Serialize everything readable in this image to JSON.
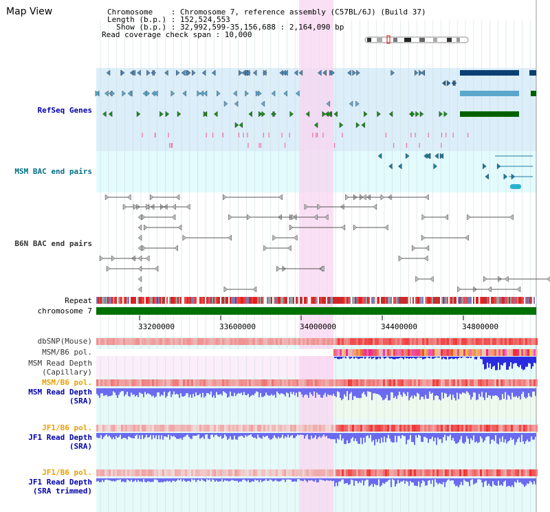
{
  "view_title": "Map View",
  "header": {
    "chromosome_line": "Chromosome    : Chromosome 7, reference assembly (C57BL/6J) (Build 37)",
    "length_line": "Length (b.p.) : 152,524,553",
    "show_line": "  Show (b.p.) : 32,992,599-35,156,688 : 2,164,090 bp",
    "coverage_line": "Read coverage check span : 10,000"
  },
  "tracks": {
    "refseq": "RefSeq Genes",
    "msm_bac": "MSM BAC end pairs",
    "b6n_bac": "B6N BAC end pairs",
    "repeat": "Repeat",
    "chromosome": "chromosome 7",
    "dbsnp": "dbSNP(Mouse)",
    "msm_b6_pol_1": "MSM/B6 pol.",
    "msm_read_depth_cap_1": "MSM Read Depth",
    "msm_read_depth_cap_2": "(Capillary)",
    "msm_b6_pol_2": "MSM/B6 pol.",
    "msm_read_depth_sra_1": "MSM Read Depth",
    "msm_read_depth_sra_2": "(SRA)",
    "jf1_b6_pol_1": "JF1/B6 pol.",
    "jf1_read_depth_sra_1": "JF1 Read Depth",
    "jf1_read_depth_sra_2": "(SRA)",
    "jf1_b6_pol_2": "JF1/B6 pol.",
    "jf1_read_depth_trim_1": "JF1 Read Depth",
    "jf1_read_depth_trim_2": "(SRA trimmed)"
  },
  "axis_ticks": [
    "33200000",
    "33600000",
    "34000000",
    "34400000",
    "34800000"
  ],
  "colors": {
    "refseq_bg": "#dbeefa",
    "msm_bac_bg": "#e3fbfd",
    "highlight": "#f8d6f0",
    "chromosome_bar": "#007000",
    "depth_blue": "#6a6af0",
    "label_blue": "#0000aa",
    "label_orange": "#e8a000"
  }
}
